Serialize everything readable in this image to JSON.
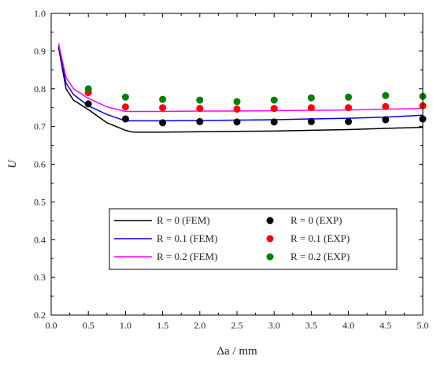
{
  "chart_data": {
    "type": "line",
    "xlabel": "Δa / mm",
    "ylabel": "U",
    "xlim": [
      0.0,
      5.0
    ],
    "ylim": [
      0.2,
      1.0
    ],
    "xticks": [
      "0.0",
      "0.5",
      "1.0",
      "1.5",
      "2.0",
      "2.5",
      "3.0",
      "3.5",
      "4.0",
      "4.5",
      "5.0"
    ],
    "yticks": [
      "0.2",
      "0.3",
      "0.4",
      "0.5",
      "0.6",
      "0.7",
      "0.8",
      "0.9",
      "1.0"
    ],
    "grid": false,
    "legend_position": "bottom-center",
    "series": [
      {
        "name": "R = 0 (FEM)",
        "kind": "line",
        "color": "#000000",
        "x": [
          0.1,
          0.2,
          0.3,
          0.5,
          0.75,
          1.0,
          1.1,
          1.5,
          2.0,
          2.5,
          3.0,
          3.5,
          4.0,
          4.5,
          5.0
        ],
        "y": [
          0.91,
          0.8,
          0.77,
          0.745,
          0.71,
          0.69,
          0.685,
          0.685,
          0.686,
          0.687,
          0.688,
          0.69,
          0.692,
          0.695,
          0.698
        ]
      },
      {
        "name": "R = 0.1 (FEM)",
        "kind": "line",
        "color": "#0000ff",
        "x": [
          0.1,
          0.2,
          0.3,
          0.5,
          0.75,
          1.0,
          1.5,
          2.0,
          2.5,
          3.0,
          3.5,
          4.0,
          4.5,
          5.0
        ],
        "y": [
          0.915,
          0.815,
          0.785,
          0.755,
          0.732,
          0.715,
          0.715,
          0.716,
          0.717,
          0.718,
          0.72,
          0.722,
          0.725,
          0.73
        ]
      },
      {
        "name": "R = 0.2 (FEM)",
        "kind": "line",
        "color": "#ff00ff",
        "x": [
          0.1,
          0.2,
          0.3,
          0.5,
          0.75,
          1.0,
          1.5,
          2.0,
          2.5,
          3.0,
          3.5,
          4.0,
          4.5,
          5.0
        ],
        "y": [
          0.92,
          0.83,
          0.8,
          0.775,
          0.752,
          0.74,
          0.74,
          0.741,
          0.741,
          0.742,
          0.743,
          0.744,
          0.746,
          0.748
        ]
      },
      {
        "name": "R = 0 (EXP)",
        "kind": "scatter",
        "color": "#000000",
        "x": [
          0.5,
          1.0,
          1.5,
          2.0,
          2.5,
          3.0,
          3.5,
          4.0,
          4.5,
          5.0
        ],
        "y": [
          0.76,
          0.72,
          0.71,
          0.713,
          0.712,
          0.712,
          0.713,
          0.713,
          0.718,
          0.72
        ]
      },
      {
        "name": "R = 0.1 (EXP)",
        "kind": "scatter",
        "color": "#ff0000",
        "x": [
          0.5,
          1.0,
          1.5,
          2.0,
          2.5,
          3.0,
          3.5,
          4.0,
          4.5,
          5.0
        ],
        "y": [
          0.79,
          0.752,
          0.75,
          0.748,
          0.746,
          0.748,
          0.75,
          0.75,
          0.753,
          0.755
        ]
      },
      {
        "name": "R = 0.2 (EXP)",
        "kind": "scatter",
        "color": "#008000",
        "x": [
          0.5,
          1.0,
          1.5,
          2.0,
          2.5,
          3.0,
          3.5,
          4.0,
          4.5,
          5.0
        ],
        "y": [
          0.8,
          0.778,
          0.772,
          0.77,
          0.766,
          0.77,
          0.776,
          0.778,
          0.782,
          0.78
        ]
      }
    ]
  }
}
